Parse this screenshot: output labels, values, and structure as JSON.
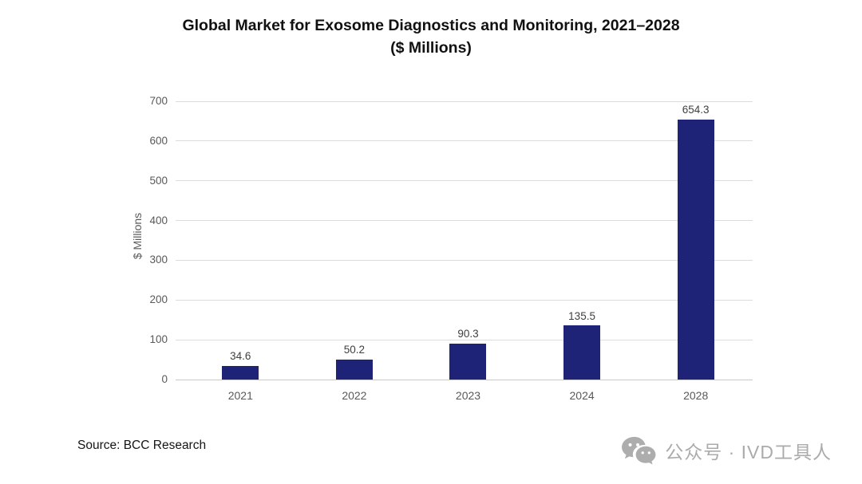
{
  "title": "Global Market for Exosome Diagnostics and Monitoring, 2021–2028",
  "subtitle": "($ Millions)",
  "chart_data": {
    "type": "bar",
    "categories": [
      "2021",
      "2022",
      "2023",
      "2024",
      "2028"
    ],
    "values": [
      34.6,
      50.2,
      90.3,
      135.5,
      654.3
    ],
    "data_labels": [
      "34.6",
      "50.2",
      "90.3",
      "135.5",
      "654.3"
    ],
    "title": "Global Market for Exosome Diagnostics and Monitoring, 2021–2028 ($ Millions)",
    "xlabel": "",
    "ylabel": "$ Millions",
    "ylim": [
      0,
      700
    ],
    "yticks": [
      0,
      100,
      200,
      300,
      400,
      500,
      600,
      700
    ],
    "grid": true,
    "legend_position": "none",
    "bar_color": "#1F2377",
    "gridline_color": "#DCDCDC",
    "tick_label_color": "#595959"
  },
  "source": "Source: BCC Research",
  "watermark": {
    "icon": "wechat-icon",
    "text": "公众号 · IVD工具人",
    "color": "#ABABAB"
  }
}
